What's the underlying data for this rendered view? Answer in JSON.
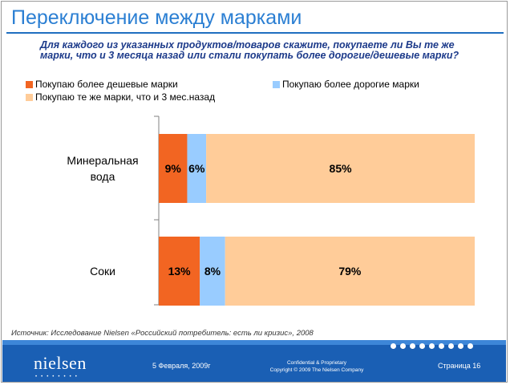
{
  "slide": {
    "title": "Переключение между марками",
    "question": "Для каждого из указанных продуктов/товаров скажите, покупаете ли Вы те же марки, что и 3 месяца назад или стали покупать более дорогие/дешевые марки?",
    "source": "Источник: Исследование Nielsen «Российский потребитель: есть ли кризис», 2008"
  },
  "footer": {
    "logo": "nielsen",
    "date": "5 Февраля, 2009г",
    "confidential_line1": "Confidential & Proprietary",
    "confidential_line2": "Copyright © 2009 The Nielsen Company",
    "page": "Страница 16"
  },
  "colors": {
    "cheaper": "#f26522",
    "pricier": "#99ccff",
    "same": "#ffcc99",
    "title": "#2b7fd3",
    "footer": "#1a5fb4"
  },
  "chart_data": {
    "type": "bar",
    "orientation": "horizontal",
    "stacked": true,
    "categories": [
      "Минеральная вода",
      "Соки"
    ],
    "series": [
      {
        "name": "Покупаю более дешевые марки",
        "values": [
          9,
          13
        ],
        "color_key": "cheaper"
      },
      {
        "name": "Покупаю более дорогие марки",
        "values": [
          6,
          8
        ],
        "color_key": "pricier"
      },
      {
        "name": "Покупаю те же марки, что и 3 мес.назад",
        "values": [
          85,
          79
        ],
        "color_key": "same"
      }
    ],
    "data_labels": [
      [
        "9%",
        "6%",
        "85%"
      ],
      [
        "13%",
        "8%",
        "79%"
      ]
    ],
    "category_label_lines": [
      [
        "Минеральная",
        "вода"
      ],
      [
        "Соки"
      ]
    ],
    "xlim": [
      0,
      100
    ],
    "legend_position": "top"
  }
}
